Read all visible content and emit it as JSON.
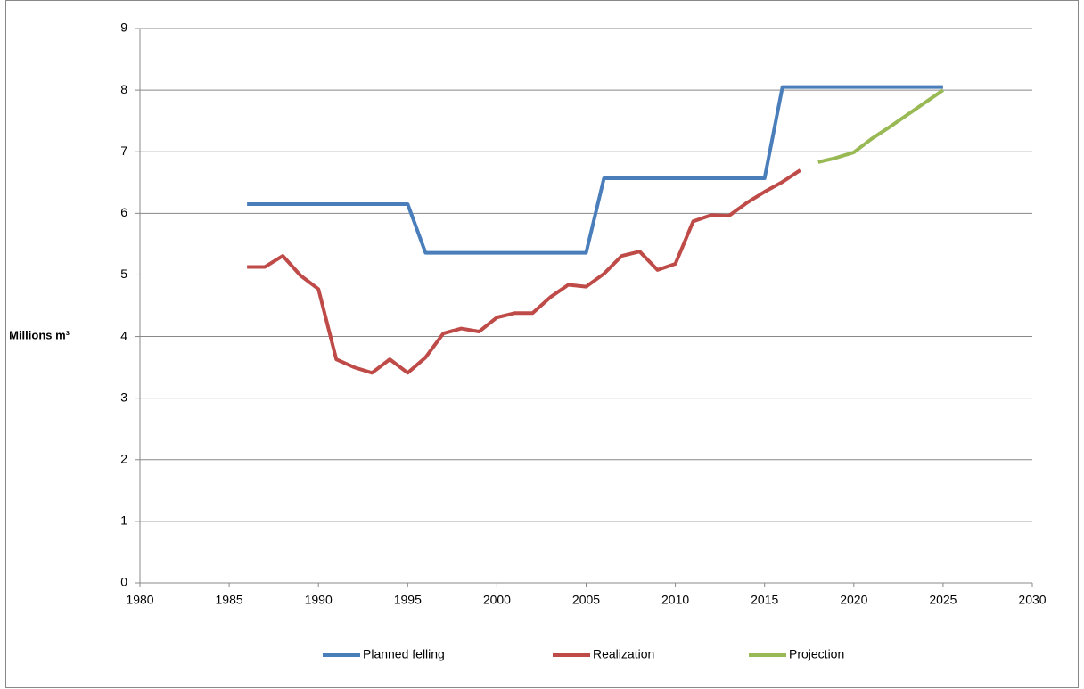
{
  "chart_data": {
    "type": "line",
    "y_label": "Millions m³",
    "x": [
      1986,
      1987,
      1988,
      1989,
      1990,
      1991,
      1992,
      1993,
      1994,
      1995,
      1996,
      1997,
      1998,
      1999,
      2000,
      2001,
      2002,
      2003,
      2004,
      2005,
      2006,
      2007,
      2008,
      2009,
      2010,
      2011,
      2012,
      2013,
      2014,
      2015,
      2016,
      2017,
      2018,
      2019,
      2020,
      2021,
      2022,
      2023,
      2024,
      2025
    ],
    "series": [
      {
        "name": "Planned felling",
        "color": "#4a7ebb",
        "values": [
          6.15,
          6.15,
          6.15,
          6.15,
          6.15,
          6.15,
          6.15,
          6.15,
          6.15,
          6.15,
          5.36,
          5.36,
          5.36,
          5.36,
          5.36,
          5.36,
          5.36,
          5.36,
          5.36,
          5.36,
          6.57,
          6.57,
          6.57,
          6.57,
          6.57,
          6.57,
          6.57,
          6.57,
          6.57,
          6.57,
          8.05,
          8.05,
          8.05,
          8.05,
          8.05,
          8.05,
          8.05,
          8.05,
          8.05,
          8.05
        ]
      },
      {
        "name": "Realization",
        "color": "#be4b48",
        "values": [
          5.13,
          5.13,
          5.31,
          4.99,
          4.77,
          3.63,
          3.5,
          3.41,
          3.63,
          3.41,
          3.66,
          4.05,
          4.13,
          4.08,
          4.31,
          4.38,
          4.38,
          4.64,
          4.84,
          4.81,
          5.02,
          5.31,
          5.38,
          5.08,
          5.18,
          5.87,
          5.97,
          5.96,
          6.17,
          6.35,
          6.51,
          6.7,
          null,
          null,
          null,
          null,
          null,
          null,
          null,
          null
        ]
      },
      {
        "name": "Projection",
        "color": "#98b954",
        "values": [
          null,
          null,
          null,
          null,
          null,
          null,
          null,
          null,
          null,
          null,
          null,
          null,
          null,
          null,
          null,
          null,
          null,
          null,
          null,
          null,
          null,
          null,
          null,
          null,
          null,
          null,
          null,
          null,
          null,
          null,
          null,
          null,
          6.83,
          6.9,
          6.99,
          7.21,
          7.4,
          7.6,
          7.8,
          8.0
        ]
      }
    ],
    "xlim": [
      1980,
      2030
    ],
    "xticks": [
      1980,
      1985,
      1990,
      1995,
      2000,
      2005,
      2010,
      2015,
      2020,
      2025,
      2030
    ],
    "ylim": [
      0,
      9
    ],
    "yticks": [
      0,
      1,
      2,
      3,
      4,
      5,
      6,
      7,
      8,
      9
    ],
    "grid": true,
    "legend": "bottom"
  }
}
